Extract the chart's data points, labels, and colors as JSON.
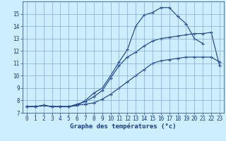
{
  "xlabel": "Graphe des températures (°c)",
  "x": [
    0,
    1,
    2,
    3,
    4,
    5,
    6,
    7,
    8,
    9,
    10,
    11,
    12,
    13,
    14,
    15,
    16,
    17,
    18,
    19,
    20,
    21,
    22,
    23
  ],
  "line_max": [
    7.5,
    7.5,
    7.6,
    7.5,
    7.5,
    7.5,
    7.6,
    8.0,
    8.6,
    9.0,
    10.0,
    11.1,
    12.1,
    14.0,
    14.9,
    15.1,
    15.5,
    15.5,
    14.8,
    14.2,
    13.0,
    12.6,
    null,
    null
  ],
  "line_mid": [
    7.5,
    7.5,
    7.6,
    7.5,
    7.5,
    7.5,
    7.7,
    7.9,
    8.3,
    8.8,
    9.8,
    10.8,
    11.5,
    11.9,
    12.4,
    12.8,
    13.0,
    13.1,
    13.2,
    13.3,
    13.4,
    13.4,
    13.5,
    10.8
  ],
  "line_min": [
    7.5,
    7.5,
    7.6,
    7.5,
    7.5,
    7.5,
    7.6,
    7.7,
    7.8,
    8.1,
    8.5,
    9.0,
    9.5,
    10.0,
    10.5,
    11.0,
    11.2,
    11.3,
    11.4,
    11.5,
    11.5,
    11.5,
    11.5,
    11.1
  ],
  "line_color": "#1a3a8c",
  "bg_color": "#cceeff",
  "grid_color": "#7799cc",
  "ylim": [
    7,
    16
  ],
  "xlim": [
    -0.5,
    23.5
  ],
  "yticks": [
    7,
    8,
    9,
    10,
    11,
    12,
    13,
    14,
    15
  ],
  "xticks": [
    0,
    1,
    2,
    3,
    4,
    5,
    6,
    7,
    8,
    9,
    10,
    11,
    12,
    13,
    14,
    15,
    16,
    17,
    18,
    19,
    20,
    21,
    22,
    23
  ],
  "xlabel_fontsize": 6.5,
  "tick_fontsize": 5.5
}
